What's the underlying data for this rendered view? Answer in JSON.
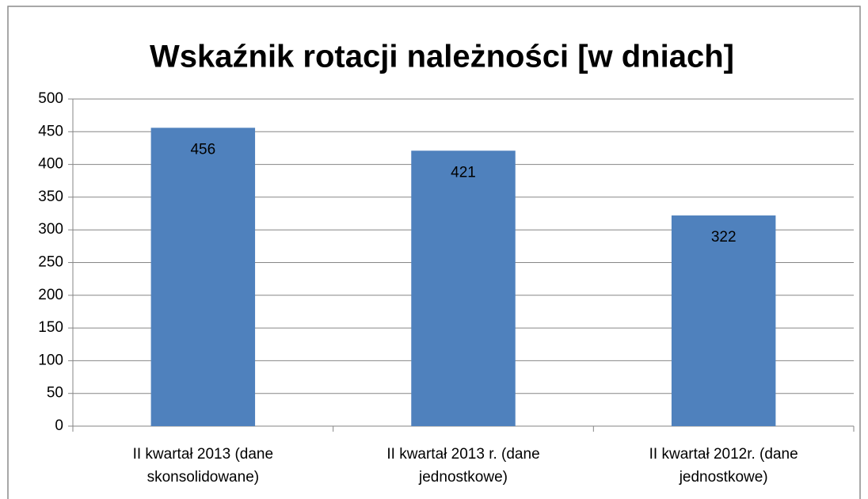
{
  "chart_data": {
    "type": "bar",
    "title": "Wskaźnik rotacji należności [w dniach]",
    "categories": [
      [
        "II kwartał 2013  (dane",
        "skonsolidowane)"
      ],
      [
        "II kwartał 2013 r. (dane",
        "jednostkowe)"
      ],
      [
        "II kwartał 2012r. (dane",
        "jednostkowe)"
      ]
    ],
    "values": [
      456,
      421,
      322
    ],
    "color": "#4f81bd",
    "ylim": [
      0,
      500
    ],
    "yticks": [
      0,
      50,
      100,
      150,
      200,
      250,
      300,
      350,
      400,
      450,
      500
    ],
    "grid": true
  }
}
